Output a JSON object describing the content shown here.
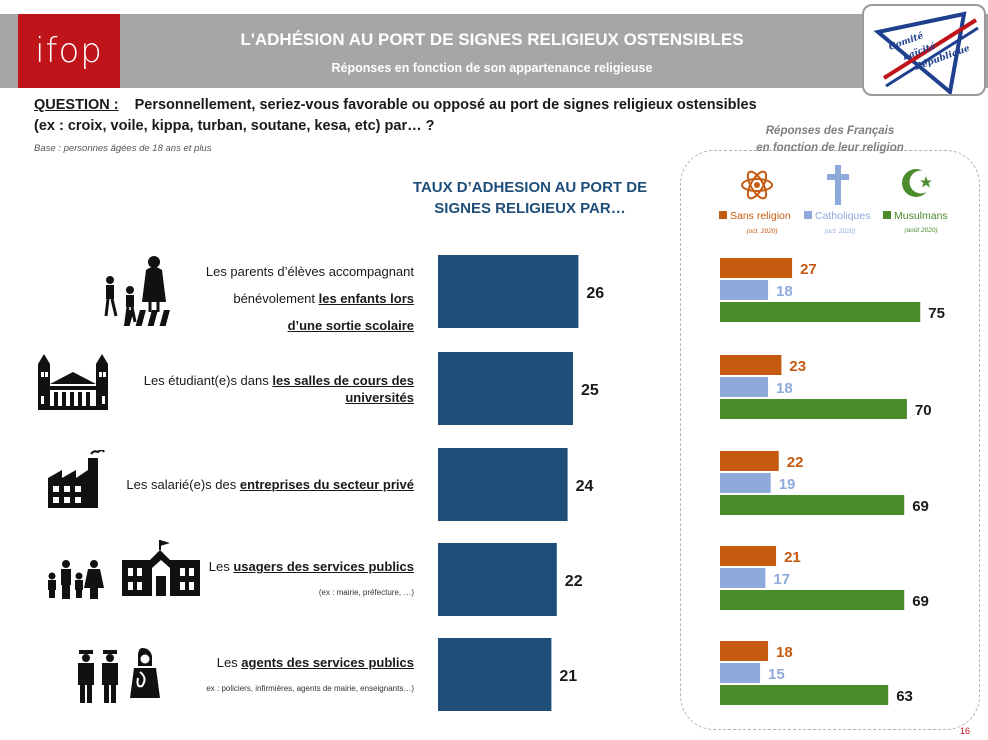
{
  "header": {
    "logo_text": "ifop",
    "title": "L'ADHÉSION AU PORT DE SIGNES RELIGIEUX OSTENSIBLES",
    "subtitle": "Réponses en fonction de son appartenance religieuse",
    "partner_logo": {
      "line1": "Comité",
      "line2": "Laïcité",
      "line3": "République"
    }
  },
  "question": {
    "label": "QUESTION :",
    "line1": "Personnellement, seriez-vous favorable ou opposé au port de signes religieux ostensibles",
    "line2": "(ex : croix, voile, kippa, turban, soutane, kesa, etc) par… ?",
    "base": "Base : personnes âgées de 18 ans et plus"
  },
  "main_title": [
    "TAUX D’ADHESION AU PORT DE",
    "SIGNES RELIGIEUX PAR…"
  ],
  "rows": [
    {
      "pre": "Les parents d’élèves accompagnant",
      "pre2": "bénévolement ",
      "ul": "les enfants lors",
      "ul2": "d’une sortie scolaire"
    },
    {
      "pre": "Les étudiant(e)s dans ",
      "ul": "les salles de cours des",
      "ul2": "universités"
    },
    {
      "pre": "Les salarié(e)s des ",
      "ul": "entreprises du secteur privé"
    },
    {
      "pre": "Les ",
      "ul": "usagers des services publics",
      "note": "(ex : mairie, préfecture, …)"
    },
    {
      "pre": "Les ",
      "ul": "agents des services publics",
      "note": "ex : policiers, infirmières, agents de mairie, enseignants…)"
    }
  ],
  "panel": {
    "title_line1": "Réponses des Français",
    "title_line2": "en fonction de leur religion",
    "legend": [
      {
        "label": "Sans religion",
        "date": "(oct. 2020)",
        "color": "#c55a11",
        "icon": "atom-icon"
      },
      {
        "label": "Catholiques",
        "date": "(oct. 2020)",
        "color": "#8eaadb",
        "icon": "cross-icon"
      },
      {
        "label": "Musulmans",
        "date": "(août 2020)",
        "color": "#4a8b2c",
        "icon": "crescent-star-icon"
      }
    ]
  },
  "page_number": "16",
  "chart_data": [
    {
      "type": "bar",
      "orientation": "horizontal",
      "title": "TAUX D’ADHESION AU PORT DE SIGNES RELIGIEUX PAR…",
      "categories": [
        "Les parents d’élèves accompagnant bénévolement les enfants lors d’une sortie scolaire",
        "Les étudiant(e)s dans les salles de cours des universités",
        "Les salarié(e)s des entreprises du secteur privé",
        "Les usagers des services publics",
        "Les agents des services publics"
      ],
      "values": [
        26,
        25,
        24,
        22,
        21
      ],
      "color": "#1f4e79",
      "grid": false
    },
    {
      "type": "bar",
      "orientation": "horizontal",
      "title": "Réponses des Français en fonction de leur religion",
      "categories": [
        "Les parents d’élèves accompagnant bénévolement les enfants lors d’une sortie scolaire",
        "Les étudiant(e)s dans les salles de cours des universités",
        "Les salarié(e)s des entreprises du secteur privé",
        "Les usagers des services publics",
        "Les agents des services publics"
      ],
      "series": [
        {
          "name": "Sans religion",
          "values": [
            27,
            23,
            22,
            21,
            18
          ],
          "color": "#c55a11"
        },
        {
          "name": "Catholiques",
          "values": [
            18,
            18,
            19,
            17,
            15
          ],
          "color": "#8eaadb"
        },
        {
          "name": "Musulmans",
          "values": [
            75,
            70,
            69,
            69,
            63
          ],
          "color": "#4a8b2c"
        }
      ],
      "legend": "top",
      "grid": false
    }
  ]
}
